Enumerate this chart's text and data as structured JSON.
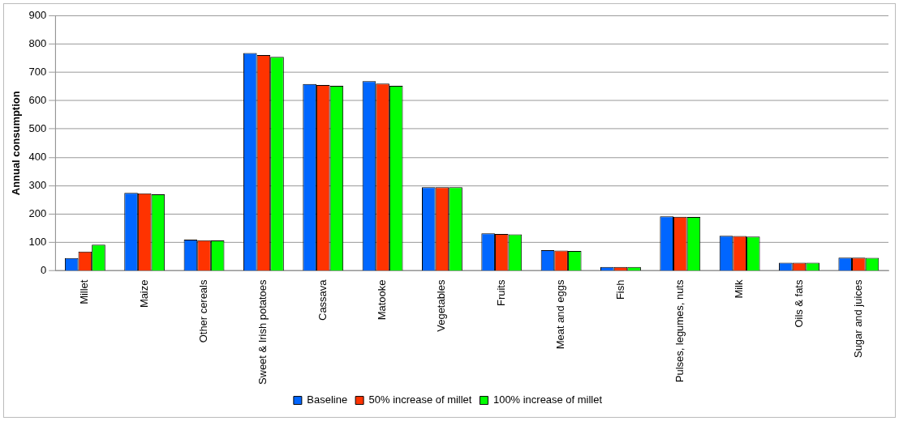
{
  "chart_data": {
    "type": "bar",
    "ylabel": "Annual consumption",
    "categories": [
      "Millet",
      "Maize",
      "Other cereals",
      "Sweet & Irish potatoes",
      "Cassava",
      "Matooke",
      "Vegetables",
      "Fruits",
      "Meat and eggs",
      "Fish",
      "Pulses, legumes, nuts",
      "Milk",
      "Oils & fats",
      "Sugar and juices"
    ],
    "series": [
      {
        "name": "Baseline",
        "color": "#0066ff",
        "values": [
          45,
          275,
          110,
          767,
          658,
          668,
          295,
          132,
          73,
          14,
          192,
          124,
          29,
          47
        ]
      },
      {
        "name": "50% increase of millet",
        "color": "#ff3300",
        "values": [
          68,
          273,
          108,
          760,
          655,
          660,
          295,
          130,
          72,
          14,
          191,
          123,
          29,
          47
        ]
      },
      {
        "name": "100% increase of millet",
        "color": "#00ff00",
        "values": [
          92,
          270,
          107,
          754,
          652,
          652,
          295,
          129,
          70,
          14,
          190,
          121,
          29,
          46
        ]
      }
    ],
    "ylim": [
      0,
      900
    ],
    "yticks": [
      0,
      100,
      200,
      300,
      400,
      500,
      600,
      700,
      800,
      900
    ],
    "grid": "y",
    "legend": "bottom"
  }
}
